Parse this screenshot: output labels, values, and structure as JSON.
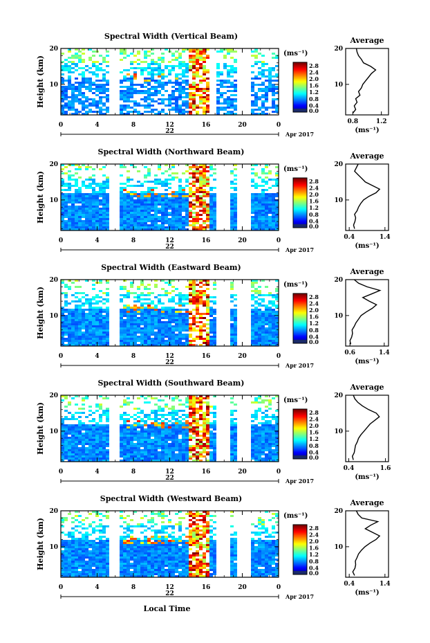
{
  "chart_data": [
    {
      "type": "heatmap",
      "title": "Spectral Width (Vertical Beam)",
      "ylabel": "Height (km)",
      "x_ticks": [
        "0",
        "4",
        "8",
        "12",
        "16",
        "20",
        "0"
      ],
      "y_ticks": [
        "20",
        "10"
      ],
      "xlim": [
        0,
        24
      ],
      "ylim": [
        1.5,
        20
      ],
      "day_label": "22",
      "date_label": "Apr 2017",
      "colorbar": {
        "unit": "(ms⁻¹)",
        "ticks": [
          "2.8",
          "2.4",
          "2.0",
          "1.6",
          "1.2",
          "0.8",
          "0.4",
          "0.0"
        ],
        "range": [
          0,
          3.0
        ]
      },
      "data_gaps_hours": [
        [
          5.2,
          6.5
        ],
        [
          16.5,
          17.0
        ],
        [
          19.3,
          20.8
        ]
      ],
      "average_profile": {
        "title": "Average",
        "xlabel": "(ms⁻¹)",
        "x_ticks": [
          "0.8",
          "1.2"
        ],
        "xlim": [
          0.7,
          1.3
        ],
        "y_ticks": [
          "20",
          "10"
        ],
        "heights_km": [
          2,
          3,
          4,
          5,
          6,
          7,
          8,
          9,
          10,
          11,
          12,
          13,
          14,
          15,
          16,
          17,
          18,
          19,
          20
        ],
        "values": [
          0.8,
          0.84,
          0.82,
          0.86,
          0.84,
          0.9,
          0.88,
          0.92,
          0.94,
          0.98,
          1.02,
          1.06,
          1.12,
          1.05,
          0.95,
          0.92,
          0.88,
          0.86,
          0.85
        ]
      }
    },
    {
      "type": "heatmap",
      "title": "Spectral Width (Northward Beam)",
      "ylabel": "Height (km)",
      "x_ticks": [
        "0",
        "4",
        "8",
        "12",
        "16",
        "20",
        "0"
      ],
      "y_ticks": [
        "20",
        "10"
      ],
      "xlim": [
        0,
        24
      ],
      "ylim": [
        1.5,
        20
      ],
      "day_label": "22",
      "date_label": "Apr 2017",
      "colorbar": {
        "unit": "(ms⁻¹)",
        "ticks": [
          "2.8",
          "2.4",
          "2.0",
          "1.6",
          "1.2",
          "0.8",
          "0.4",
          "0.0"
        ],
        "range": [
          0,
          3.0
        ]
      },
      "data_gaps_hours": [
        [
          5.2,
          6.5
        ],
        [
          17.2,
          18.8
        ],
        [
          19.5,
          20.8
        ]
      ],
      "average_profile": {
        "title": "Average",
        "xlabel": "(ms⁻¹)",
        "x_ticks": [
          "0.4",
          "1.4"
        ],
        "xlim": [
          0.3,
          1.5
        ],
        "y_ticks": [
          "20",
          "10"
        ],
        "heights_km": [
          2,
          3,
          4,
          5,
          6,
          7,
          8,
          9,
          10,
          11,
          12,
          13,
          14,
          15,
          16,
          17,
          18,
          19,
          20
        ],
        "values": [
          0.55,
          0.52,
          0.56,
          0.58,
          0.55,
          0.62,
          0.66,
          0.72,
          0.8,
          0.95,
          1.15,
          1.25,
          1.05,
          0.85,
          0.75,
          0.65,
          0.55,
          0.6,
          0.65
        ]
      }
    },
    {
      "type": "heatmap",
      "title": "Spectral Width (Eastward Beam)",
      "ylabel": "Height (km)",
      "x_ticks": [
        "0",
        "4",
        "8",
        "12",
        "16",
        "20",
        "0"
      ],
      "y_ticks": [
        "20",
        "10"
      ],
      "xlim": [
        0,
        24
      ],
      "ylim": [
        1.5,
        20
      ],
      "day_label": "22",
      "date_label": "Apr 2017",
      "colorbar": {
        "unit": "(ms⁻¹)",
        "ticks": [
          "2.8",
          "2.4",
          "2.0",
          "1.6",
          "1.2",
          "0.8",
          "0.4",
          "0.0"
        ],
        "range": [
          0,
          3.0
        ]
      },
      "data_gaps_hours": [
        [
          5.2,
          6.5
        ],
        [
          17.2,
          18.8
        ],
        [
          19.5,
          20.8
        ]
      ],
      "average_profile": {
        "title": "Average",
        "xlabel": "(ms⁻¹)",
        "x_ticks": [
          "0.6",
          "1.4"
        ],
        "xlim": [
          0.5,
          1.5
        ],
        "y_ticks": [
          "20",
          "10"
        ],
        "heights_km": [
          2,
          3,
          4,
          5,
          6,
          7,
          8,
          9,
          10,
          11,
          12,
          13,
          14,
          15,
          16,
          17,
          18,
          19,
          20
        ],
        "values": [
          0.62,
          0.6,
          0.64,
          0.66,
          0.65,
          0.7,
          0.74,
          0.8,
          0.86,
          0.98,
          1.12,
          1.22,
          1.05,
          0.9,
          1.1,
          1.3,
          1.0,
          0.8,
          0.7
        ]
      }
    },
    {
      "type": "heatmap",
      "title": "Spectral Width (Southward Beam)",
      "ylabel": "Height (km)",
      "x_ticks": [
        "0",
        "4",
        "8",
        "12",
        "16",
        "20",
        "0"
      ],
      "y_ticks": [
        "20",
        "10"
      ],
      "xlim": [
        0,
        24
      ],
      "ylim": [
        1.5,
        20
      ],
      "day_label": "22",
      "date_label": "Apr 2017",
      "colorbar": {
        "unit": "(ms⁻¹)",
        "ticks": [
          "2.8",
          "2.4",
          "2.0",
          "1.6",
          "1.2",
          "0.8",
          "0.4",
          "0.0"
        ],
        "range": [
          0,
          3.0
        ]
      },
      "data_gaps_hours": [
        [
          5.2,
          6.5
        ],
        [
          17.2,
          18.8
        ],
        [
          19.5,
          20.8
        ]
      ],
      "average_profile": {
        "title": "Average",
        "xlabel": "(ms⁻¹)",
        "x_ticks": [
          "0.4",
          "1.6"
        ],
        "xlim": [
          0.3,
          1.7
        ],
        "y_ticks": [
          "20",
          "10"
        ],
        "heights_km": [
          2,
          3,
          4,
          5,
          6,
          7,
          8,
          9,
          10,
          11,
          12,
          13,
          14,
          15,
          16,
          17,
          18,
          19,
          20
        ],
        "values": [
          0.55,
          0.52,
          0.58,
          0.6,
          0.62,
          0.68,
          0.72,
          0.8,
          0.9,
          1.0,
          1.1,
          1.25,
          1.4,
          1.3,
          1.05,
          0.85,
          0.7,
          0.6,
          0.55
        ]
      }
    },
    {
      "type": "heatmap",
      "title": "Spectral Width (Westward Beam)",
      "ylabel": "Height (km)",
      "x_ticks": [
        "0",
        "4",
        "8",
        "12",
        "16",
        "20",
        "0"
      ],
      "y_ticks": [
        "20",
        "10"
      ],
      "xlim": [
        0,
        24
      ],
      "ylim": [
        1.5,
        20
      ],
      "day_label": "22",
      "date_label": "Apr 2017",
      "xlabel": "Local Time",
      "colorbar": {
        "unit": "(ms⁻¹)",
        "ticks": [
          "2.8",
          "2.4",
          "2.0",
          "1.6",
          "1.2",
          "0.8",
          "0.4",
          "0.0"
        ],
        "range": [
          0,
          3.0
        ]
      },
      "data_gaps_hours": [
        [
          5.2,
          6.5
        ],
        [
          17.2,
          18.8
        ],
        [
          19.5,
          20.8
        ]
      ],
      "average_profile": {
        "title": "Average",
        "xlabel": "(ms⁻¹)",
        "x_ticks": [
          "0.4",
          "1.4"
        ],
        "xlim": [
          0.3,
          1.5
        ],
        "y_ticks": [
          "20",
          "10"
        ],
        "heights_km": [
          2,
          3,
          4,
          5,
          6,
          7,
          8,
          9,
          10,
          11,
          12,
          13,
          14,
          15,
          16,
          17,
          18,
          19,
          20
        ],
        "values": [
          0.55,
          0.5,
          0.56,
          0.58,
          0.57,
          0.62,
          0.66,
          0.74,
          0.84,
          0.98,
          1.15,
          1.25,
          1.05,
          0.85,
          1.0,
          1.2,
          0.75,
          0.65,
          0.6
        ]
      }
    }
  ]
}
